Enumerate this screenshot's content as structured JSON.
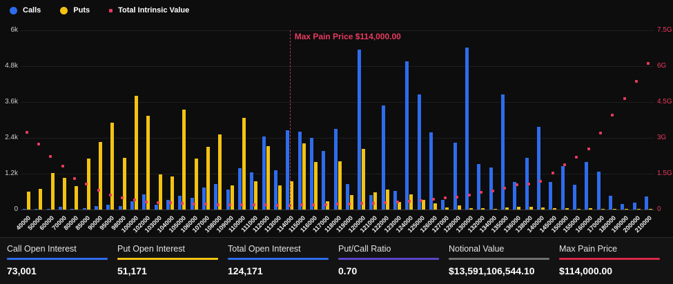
{
  "legend": [
    {
      "label": "Calls",
      "color": "#2e6ced",
      "shape": "circle"
    },
    {
      "label": "Puts",
      "color": "#f3c312",
      "shape": "circle"
    },
    {
      "label": "Total Intrinsic Value",
      "color": "#e83a5f",
      "shape": "square"
    }
  ],
  "annotation": {
    "label": "Max Pain Price $114,000.00",
    "strike": "114000",
    "line_color": "#b43a54",
    "text_color": "#e83a5f"
  },
  "chart_data": {
    "type": "bar",
    "title": "",
    "xlabel": "",
    "ylabel": "",
    "grid": true,
    "legend_position": "top-left",
    "categories": [
      "40000",
      "50000",
      "60000",
      "70000",
      "80000",
      "85000",
      "90000",
      "95000",
      "98000",
      "100000",
      "102000",
      "103000",
      "104000",
      "105000",
      "106000",
      "107000",
      "108000",
      "109000",
      "110000",
      "111000",
      "112000",
      "113000",
      "114000",
      "115000",
      "116000",
      "117000",
      "118000",
      "119000",
      "120000",
      "121000",
      "122000",
      "123000",
      "124000",
      "125000",
      "126000",
      "127000",
      "128000",
      "130000",
      "132000",
      "134000",
      "135000",
      "136000",
      "138000",
      "140000",
      "145000",
      "150000",
      "155000",
      "160000",
      "170000",
      "180000",
      "190000",
      "200000",
      "210000"
    ],
    "series": [
      {
        "name": "Calls",
        "type": "bar",
        "axis": "left",
        "color": "#2e6ced",
        "values": [
          10,
          15,
          20,
          90,
          30,
          40,
          110,
          150,
          120,
          280,
          500,
          150,
          320,
          450,
          400,
          740,
          850,
          670,
          1380,
          1250,
          2440,
          1320,
          2650,
          2600,
          2400,
          1950,
          2700,
          850,
          5350,
          480,
          3480,
          620,
          4950,
          3850,
          2590,
          320,
          2240,
          5420,
          1520,
          1400,
          3850,
          920,
          1730,
          2760,
          920,
          1450,
          840,
          1590,
          1260,
          460,
          180,
          230,
          440
        ]
      },
      {
        "name": "Puts",
        "type": "bar",
        "axis": "left",
        "color": "#f3c312",
        "values": [
          600,
          700,
          1220,
          1060,
          780,
          1700,
          2260,
          2910,
          1730,
          3800,
          3130,
          1170,
          1110,
          3340,
          1710,
          2110,
          2520,
          800,
          3070,
          950,
          2130,
          800,
          940,
          2210,
          1590,
          280,
          1610,
          480,
          2040,
          570,
          670,
          250,
          510,
          320,
          200,
          60,
          130,
          50,
          40,
          30,
          80,
          100,
          100,
          60,
          40,
          50,
          30,
          40,
          30,
          20,
          15,
          10,
          15
        ]
      },
      {
        "name": "Total Intrinsic Value",
        "type": "scatter",
        "axis": "right",
        "color": "#e83a5f",
        "values": [
          3.24,
          2.73,
          2.23,
          1.83,
          1.3,
          1.06,
          0.81,
          0.61,
          0.5,
          0.4,
          0.33,
          0.3,
          0.28,
          0.25,
          0.23,
          0.22,
          0.21,
          0.2,
          0.2,
          0.19,
          0.19,
          0.18,
          0.18,
          0.19,
          0.2,
          0.21,
          0.22,
          0.23,
          0.25,
          0.27,
          0.29,
          0.31,
          0.34,
          0.38,
          0.42,
          0.48,
          0.52,
          0.6,
          0.72,
          0.79,
          0.89,
          1.03,
          1.06,
          1.19,
          1.53,
          1.87,
          2.18,
          2.54,
          3.21,
          3.94,
          4.64,
          5.36,
          6.11
        ]
      }
    ],
    "left_axis": {
      "max": 6000,
      "ticks_top_to_bottom": [
        "6k",
        "4.8k",
        "3.6k",
        "2.4k",
        "1.2k",
        "0"
      ]
    },
    "right_axis": {
      "max": 7.5,
      "ticks_top_to_bottom": [
        "7.5G",
        "6G",
        "4.5G",
        "3G",
        "1.5G",
        "0"
      ],
      "unit": "G"
    }
  },
  "stats": [
    {
      "label": "Call Open Interest",
      "value": "73,001",
      "underline_color": "#2e6ced"
    },
    {
      "label": "Put Open Interest",
      "value": "51,171",
      "underline_color": "#f3c312"
    },
    {
      "label": "Total Open Interest",
      "value": "124,171",
      "underline_color": "#2e6ced"
    },
    {
      "label": "Put/Call Ratio",
      "value": "0.70",
      "underline_color": "#5b45c8"
    },
    {
      "label": "Notional Value",
      "value": "$13,591,106,544.10",
      "underline_color": "#707070"
    },
    {
      "label": "Max Pain Price",
      "value": "$114,000.00",
      "underline_color": "#d62746"
    }
  ]
}
